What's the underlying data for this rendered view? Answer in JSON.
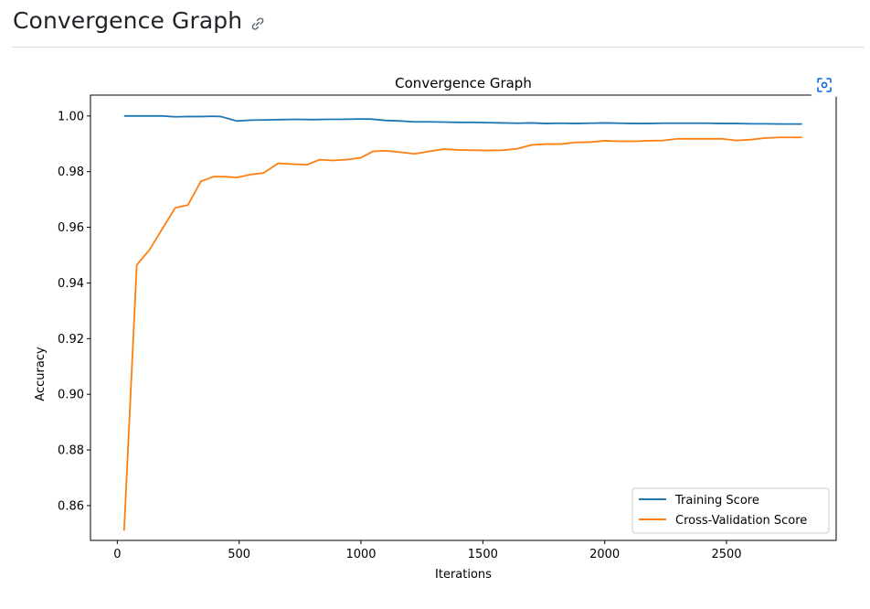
{
  "heading": {
    "title": "Convergence Graph",
    "link_icon": "link-icon"
  },
  "toolbar": {
    "expand_icon": "focus-expand-icon",
    "accent_color": "#0969da"
  },
  "chart_data": {
    "type": "line",
    "title": "Convergence Graph",
    "xlabel": "Iterations",
    "ylabel": "Accuracy",
    "xlim": [
      -110,
      2950
    ],
    "ylim": [
      0.8475,
      1.0075
    ],
    "xticks": [
      0,
      500,
      1000,
      1500,
      2000,
      2500
    ],
    "xtick_labels": [
      "0",
      "500",
      "1000",
      "1500",
      "2000",
      "2500"
    ],
    "yticks": [
      0.86,
      0.88,
      0.9,
      0.92,
      0.94,
      0.96,
      0.98,
      1.0
    ],
    "ytick_labels": [
      "0.86",
      "0.88",
      "0.90",
      "0.92",
      "0.94",
      "0.96",
      "0.98",
      "1.00"
    ],
    "legend_position": "lower-right",
    "grid": false,
    "series": [
      {
        "name": "Training Score",
        "color": "#1f77b4",
        "x": [
          28,
          80,
          133,
          185,
          238,
          290,
          343,
          395,
          425,
          490,
          550,
          610,
          670,
          735,
          800,
          860,
          920,
          980,
          1040,
          1100,
          1160,
          1220,
          1280,
          1340,
          1400,
          1460,
          1520,
          1580,
          1640,
          1700,
          1760,
          1820,
          1880,
          1940,
          2000,
          2060,
          2120,
          2180,
          2240,
          2300,
          2360,
          2420,
          2480,
          2540,
          2600,
          2660,
          2720,
          2810
        ],
        "y": [
          1.0,
          1.0,
          1.0,
          1.0,
          0.9997,
          0.9998,
          0.9998,
          0.9999,
          0.9998,
          0.9982,
          0.9985,
          0.9986,
          0.9987,
          0.9988,
          0.9987,
          0.9988,
          0.9988,
          0.9989,
          0.9989,
          0.9984,
          0.9982,
          0.9979,
          0.9979,
          0.9978,
          0.9977,
          0.9977,
          0.9976,
          0.9975,
          0.9974,
          0.9975,
          0.9973,
          0.9974,
          0.9973,
          0.9974,
          0.9975,
          0.9974,
          0.9973,
          0.9973,
          0.9974,
          0.9974,
          0.9974,
          0.9974,
          0.9973,
          0.9973,
          0.9972,
          0.9972,
          0.9971,
          0.9971
        ]
      },
      {
        "name": "Cross-Validation Score",
        "color": "#ff7f0e",
        "x": [
          28,
          80,
          133,
          185,
          238,
          290,
          343,
          395,
          440,
          490,
          550,
          600,
          660,
          720,
          780,
          830,
          880,
          940,
          1000,
          1050,
          1100,
          1160,
          1220,
          1280,
          1340,
          1400,
          1460,
          1520,
          1580,
          1640,
          1700,
          1760,
          1820,
          1880,
          1940,
          2000,
          2060,
          2120,
          2180,
          2240,
          2300,
          2360,
          2420,
          2480,
          2540,
          2600,
          2660,
          2720,
          2810
        ],
        "y": [
          0.851,
          0.9465,
          0.952,
          0.9595,
          0.967,
          0.968,
          0.9765,
          0.9782,
          0.9782,
          0.9779,
          0.979,
          0.9795,
          0.983,
          0.9827,
          0.9825,
          0.9843,
          0.984,
          0.9843,
          0.985,
          0.9873,
          0.9875,
          0.987,
          0.9864,
          0.9873,
          0.9881,
          0.9878,
          0.9877,
          0.9876,
          0.9877,
          0.9882,
          0.9896,
          0.9899,
          0.9899,
          0.9905,
          0.9906,
          0.9911,
          0.9909,
          0.9909,
          0.9911,
          0.9912,
          0.9918,
          0.9918,
          0.9918,
          0.9918,
          0.9912,
          0.9915,
          0.9921,
          0.9923,
          0.9923
        ]
      }
    ]
  }
}
